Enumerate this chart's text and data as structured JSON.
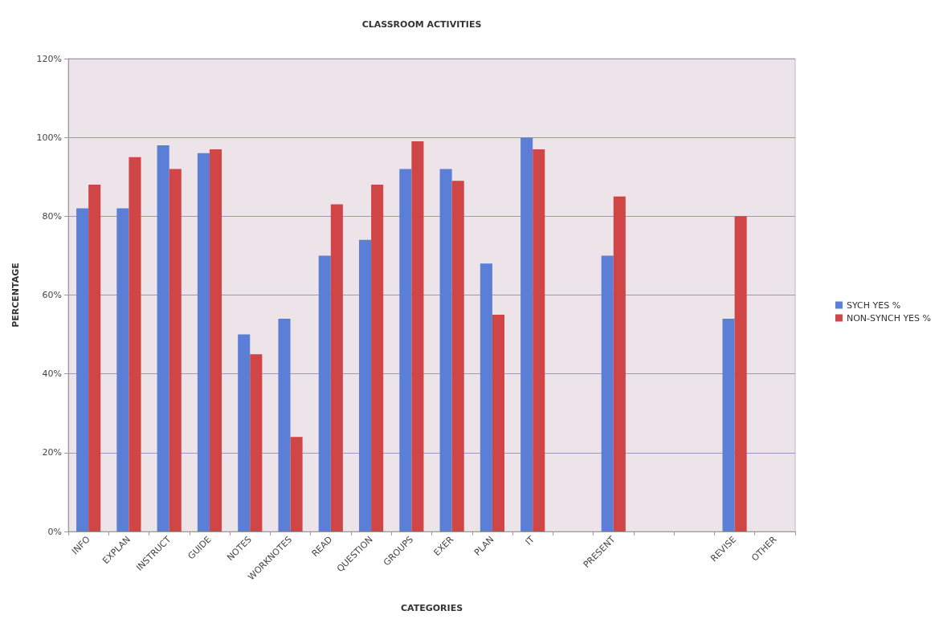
{
  "chart_data": {
    "type": "bar",
    "title": "CLASSROOM ACTIVITIES",
    "xlabel": "CATEGORIES",
    "ylabel": "PERCENTAGE",
    "categories": [
      "INFO",
      "EXPLAN",
      "INSTRUCT",
      "GUIDE",
      "NOTES",
      "WORKNOTES",
      "READ",
      "QUESTION",
      "GROUPS",
      "EXER",
      "PLAN",
      "IT",
      null,
      "PRESENT",
      null,
      null,
      "REVISE",
      "OTHER"
    ],
    "series": [
      {
        "name": "SYCH YES %",
        "color": "#5b7fd6",
        "values": [
          82,
          82,
          98,
          96,
          50,
          54,
          70,
          74,
          92,
          92,
          68,
          100,
          null,
          70,
          null,
          null,
          54,
          null
        ]
      },
      {
        "name": "NON-SYNCH YES %",
        "color": "#d04545",
        "values": [
          88,
          95,
          92,
          97,
          45,
          24,
          83,
          88,
          99,
          89,
          55,
          97,
          null,
          85,
          null,
          null,
          80,
          null
        ]
      }
    ],
    "ylim": [
      0,
      120
    ],
    "yticks": [
      {
        "value": 0,
        "label": "0%"
      },
      {
        "value": 20,
        "label": "20%"
      },
      {
        "value": 40,
        "label": "40%"
      },
      {
        "value": 60,
        "label": "60%"
      },
      {
        "value": 80,
        "label": "80%"
      },
      {
        "value": 100,
        "label": "100%"
      },
      {
        "value": 120,
        "label": "120%"
      }
    ],
    "grid": "y",
    "legend": "right"
  }
}
